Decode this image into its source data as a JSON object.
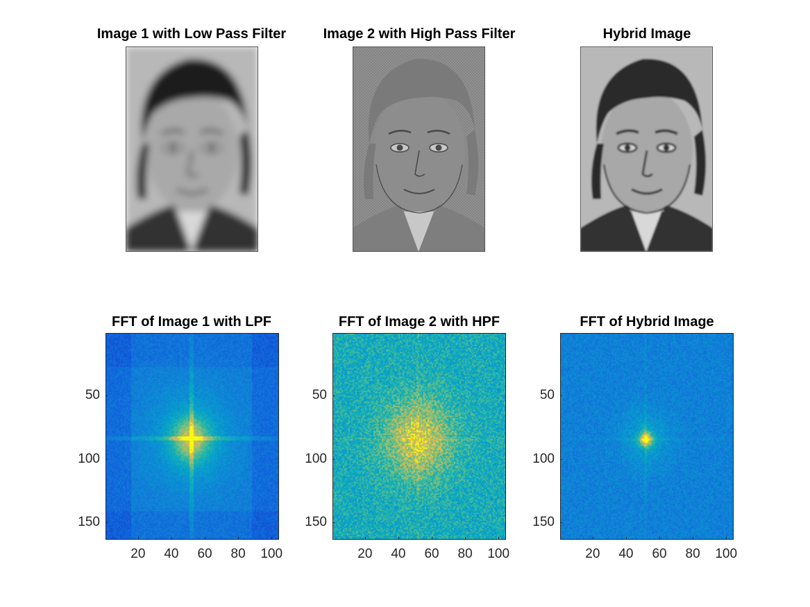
{
  "figure": {
    "top_row": [
      {
        "id": "img1",
        "title": "Image 1 with Low Pass Filter",
        "style": "blurred"
      },
      {
        "id": "img2",
        "title": "Image 2 with High Pass Filter",
        "style": "edges"
      },
      {
        "id": "hyb",
        "title": "Hybrid Image",
        "style": "hybrid"
      }
    ],
    "bottom_row": [
      {
        "id": "fft1",
        "title": "FFT of Image 1 with LPF",
        "kind": "lpf"
      },
      {
        "id": "fft2",
        "title": "FFT of Image 2 with HPF",
        "kind": "hpf"
      },
      {
        "id": "fft3",
        "title": "FFT of Hybrid Image",
        "kind": "hybrid"
      }
    ],
    "x_ticks": [
      "20",
      "40",
      "60",
      "80",
      "100"
    ],
    "y_ticks": [
      "50",
      "100",
      "150"
    ],
    "x_tick_values": [
      20,
      40,
      60,
      80,
      100
    ],
    "y_tick_values": [
      50,
      100,
      150
    ],
    "x_range": [
      0.5,
      104.5
    ],
    "y_range": [
      0.5,
      163.5
    ],
    "colormap": "parula"
  }
}
